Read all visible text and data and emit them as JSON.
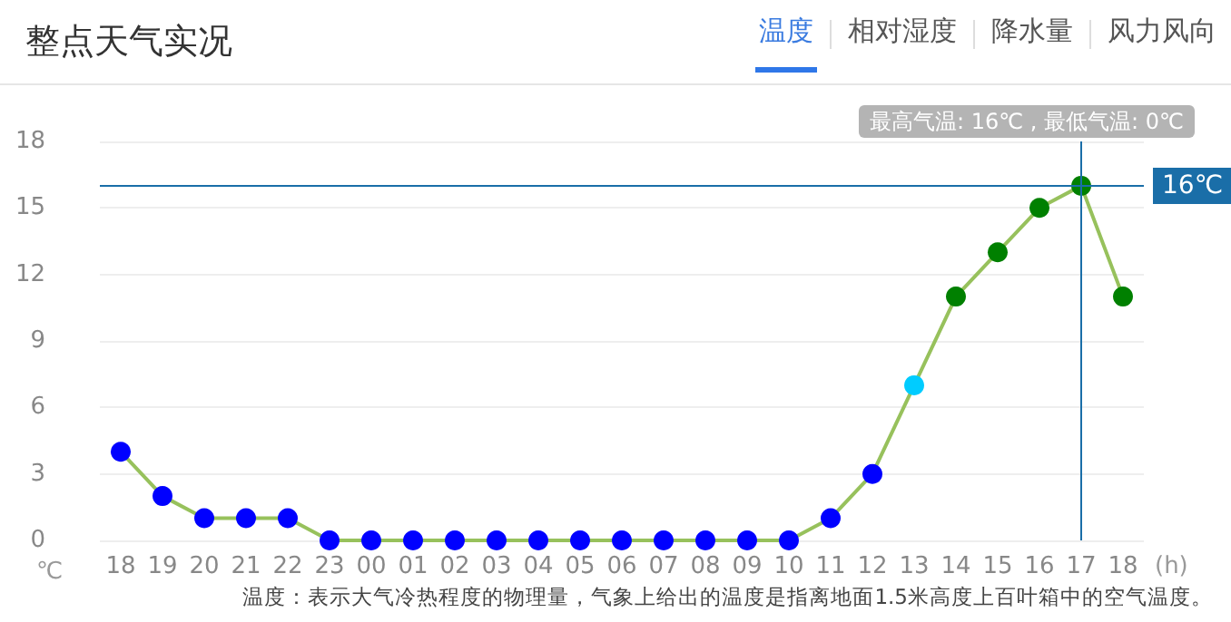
{
  "chart_data": {
    "type": "line",
    "title": "整点天气实况",
    "xlabel": "(h)",
    "ylabel": "℃",
    "categories": [
      "18",
      "19",
      "20",
      "21",
      "22",
      "23",
      "00",
      "01",
      "02",
      "03",
      "04",
      "05",
      "06",
      "07",
      "08",
      "09",
      "10",
      "11",
      "12",
      "13",
      "14",
      "15",
      "16",
      "17",
      "18"
    ],
    "values": [
      4,
      2,
      1,
      1,
      1,
      0,
      0,
      0,
      0,
      0,
      0,
      0,
      0,
      0,
      0,
      0,
      0,
      1,
      3,
      7,
      11,
      13,
      15,
      16,
      11
    ],
    "color": "#97c15c",
    "colors": [
      "#0000ff",
      "#0000ff",
      "#0000ff",
      "#0000ff",
      "#0000ff",
      "#0000ff",
      "#0000ff",
      "#0000ff",
      "#0000ff",
      "#0000ff",
      "#0000ff",
      "#0000ff",
      "#0000ff",
      "#0000ff",
      "#0000ff",
      "#0000ff",
      "#0000ff",
      "#0000ff",
      "#0000ff",
      "#00ccff",
      "#008000",
      "#008000",
      "#008000",
      "#008000",
      "#008000"
    ],
    "ylim": [
      0,
      18
    ],
    "yticks": [
      0,
      3,
      6,
      9,
      12,
      15,
      18
    ],
    "grid": "y",
    "marker": "circle",
    "line_style": "solid",
    "ref_lines": [
      {
        "axis": "y",
        "value": 16,
        "label": "16℃",
        "color": "#1a6ea8"
      },
      {
        "axis": "x",
        "value": "17",
        "label": "最高气温: 16℃ , 最低气温: 0℃",
        "color": "#1a6ea8"
      }
    ],
    "annotations": [
      "温度",
      "相对湿度",
      "降水量",
      "风力风向",
      "温度：表示大气冷热程度的物理量，气象上给出的温度是指离地面1.5米高度上百叶箱中的空气温度。"
    ]
  }
}
